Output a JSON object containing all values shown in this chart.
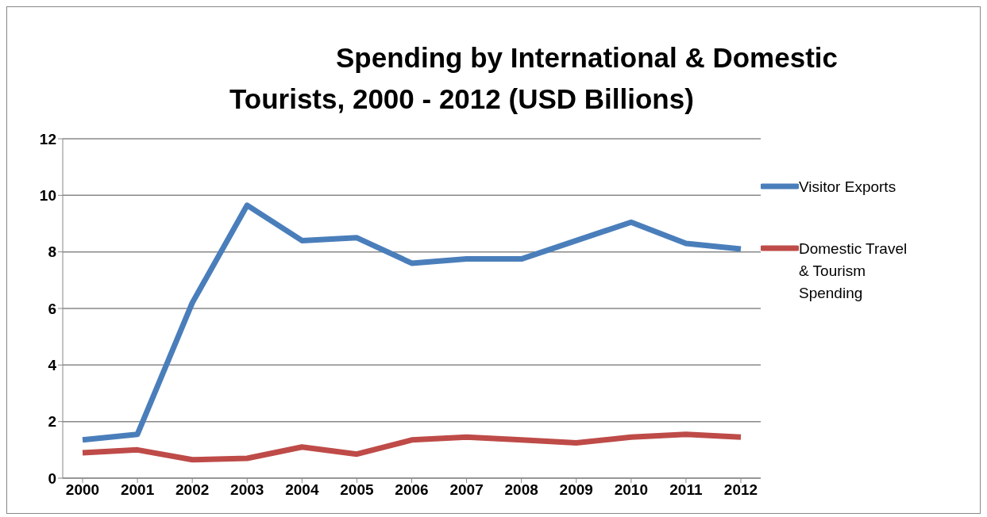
{
  "chart_data": {
    "type": "line",
    "title": "Spending by International & Domestic\nTourists, 2000 - 2012 (USD Billions)",
    "categories": [
      "2000",
      "2001",
      "2002",
      "2003",
      "2004",
      "2005",
      "2006",
      "2007",
      "2008",
      "2009",
      "2010",
      "2011",
      "2012"
    ],
    "series": [
      {
        "name": "Visitor Exports",
        "color": "#4a7ebb",
        "values": [
          1.35,
          1.55,
          6.2,
          9.65,
          8.4,
          8.5,
          7.6,
          7.75,
          7.75,
          8.4,
          9.05,
          8.3,
          8.1
        ]
      },
      {
        "name": "Domestic Travel & Tourism Spending",
        "color": "#be4b48",
        "values": [
          0.9,
          1.0,
          0.65,
          0.7,
          1.1,
          0.85,
          1.35,
          1.45,
          1.35,
          1.25,
          1.45,
          1.55,
          1.45
        ]
      }
    ],
    "ylim": [
      0,
      12
    ],
    "yticks": [
      0,
      2,
      4,
      6,
      8,
      10,
      12
    ],
    "grid": "y",
    "legend": "right",
    "marker": "none",
    "line_style": "solid"
  }
}
